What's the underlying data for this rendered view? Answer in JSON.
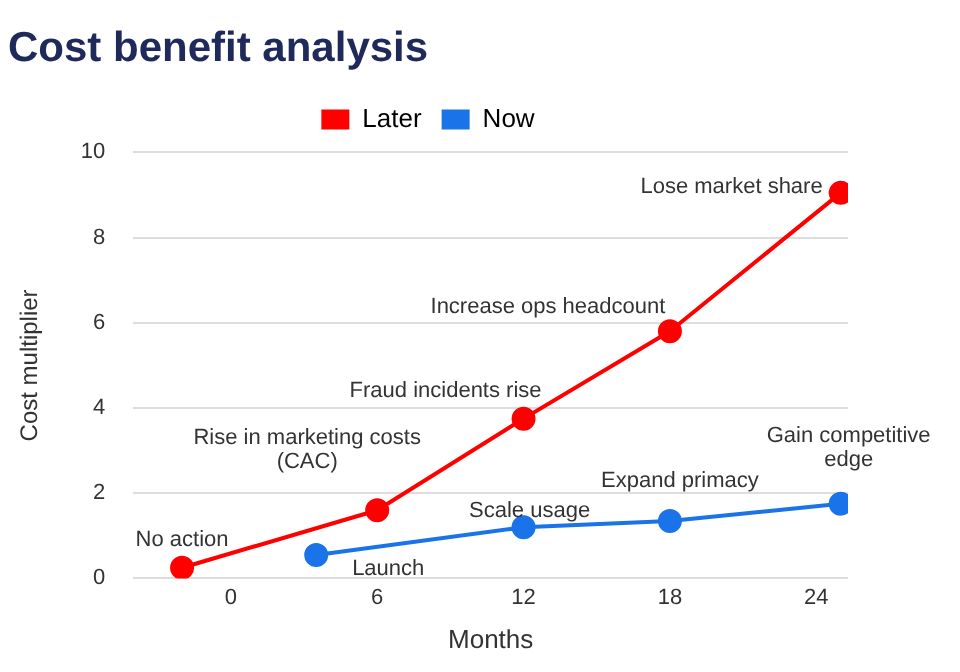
{
  "chart_data": {
    "type": "line",
    "title": "Cost benefit analysis",
    "xlabel": "Months",
    "ylabel": "Cost multiplier",
    "series": [
      {
        "name": "Later",
        "color": "#ff0000",
        "x": [
          -2,
          6,
          12,
          18,
          25
        ],
        "values": [
          0.25,
          1.6,
          3.75,
          5.8,
          9.05
        ]
      },
      {
        "name": "Now",
        "color": "#1a73e8",
        "x": [
          3.5,
          12,
          18,
          25
        ],
        "values": [
          0.55,
          1.2,
          1.35,
          1.75
        ]
      }
    ],
    "xlim": [
      -4,
      25.3
    ],
    "xticks": [
      0,
      6,
      12,
      18,
      24
    ],
    "ylim": [
      0,
      10
    ],
    "yticks": [
      0,
      2,
      4,
      6,
      8,
      10
    ],
    "grid": "y",
    "legend": "top",
    "marker": "circle",
    "line_style": "solid",
    "annotations": [
      {
        "text": "No action",
        "x": -2,
        "y": 0.25
      },
      {
        "text": "Rise in marketing costs (CAC)",
        "x": 6,
        "y": 1.6
      },
      {
        "text": "Fraud incidents rise",
        "x": 12,
        "y": 3.75
      },
      {
        "text": "Increase ops headcount",
        "x": 18,
        "y": 5.8
      },
      {
        "text": "Lose market share",
        "x": 25,
        "y": 9.05
      },
      {
        "text": "Launch",
        "x": 3.5,
        "y": 0.55
      },
      {
        "text": "Scale usage",
        "x": 12,
        "y": 1.2
      },
      {
        "text": "Expand primacy",
        "x": 18,
        "y": 1.35
      },
      {
        "text": "Gain competitive edge",
        "x": 25,
        "y": 1.75
      }
    ]
  }
}
